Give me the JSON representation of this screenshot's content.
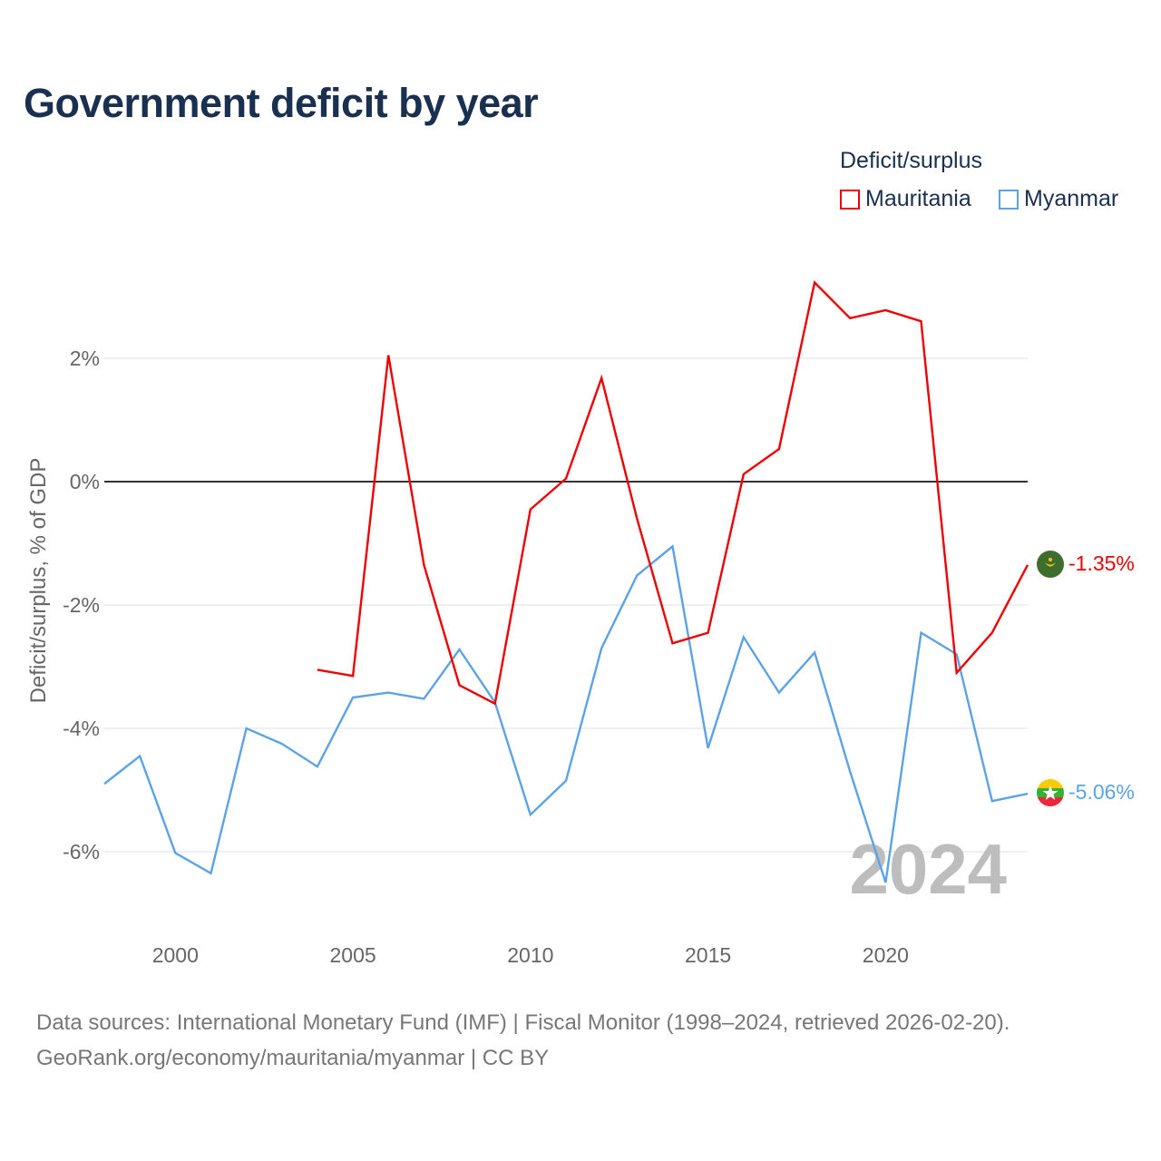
{
  "title": "Government deficit by year",
  "legend": {
    "title": "Deficit/surplus",
    "items": [
      {
        "label": "Mauritania",
        "color": "#ee0000"
      },
      {
        "label": "Myanmar",
        "color": "#5ba3e6"
      }
    ]
  },
  "watermark_year": "2024",
  "source": {
    "line1": "Data sources: International Monetary Fund (IMF) | Fiscal Monitor (1998–2024, retrieved 2026-02-20).",
    "line2": "GeoRank.org/economy/mauritania/myanmar | CC BY"
  },
  "chart_data": {
    "type": "line",
    "title": "Government deficit by year",
    "xlabel": "",
    "ylabel": "Deficit/surplus, % of GDP",
    "xlim": [
      1998,
      2024
    ],
    "ylim": [
      -7,
      3.5
    ],
    "x_ticks": [
      2000,
      2005,
      2010,
      2015,
      2020
    ],
    "y_ticks": [
      {
        "value": 2,
        "label": "2%"
      },
      {
        "value": 0,
        "label": "0%"
      },
      {
        "value": -2,
        "label": "-2%"
      },
      {
        "value": -4,
        "label": "-4%"
      },
      {
        "value": -6,
        "label": "-6%"
      }
    ],
    "series": [
      {
        "name": "Mauritania",
        "color": "#ee0000",
        "flag": "mauritania-flag-icon",
        "end_label": "-1.35%",
        "x": [
          2004,
          2005,
          2006,
          2007,
          2008,
          2009,
          2010,
          2011,
          2012,
          2013,
          2014,
          2015,
          2016,
          2017,
          2018,
          2019,
          2020,
          2021,
          2022,
          2023,
          2024
        ],
        "values": [
          -3.05,
          -3.15,
          2.05,
          -1.35,
          -3.3,
          -3.6,
          -0.45,
          0.05,
          1.68,
          -0.6,
          -2.62,
          -2.45,
          0.12,
          0.53,
          3.23,
          2.65,
          2.78,
          2.6,
          -3.1,
          -2.45,
          -1.35
        ]
      },
      {
        "name": "Myanmar",
        "color": "#5ba3e6",
        "flag": "myanmar-flag-icon",
        "end_label": "-5.06%",
        "x": [
          1998,
          1999,
          2000,
          2001,
          2002,
          2003,
          2004,
          2005,
          2006,
          2007,
          2008,
          2009,
          2010,
          2011,
          2012,
          2013,
          2014,
          2015,
          2016,
          2017,
          2018,
          2019,
          2020,
          2021,
          2022,
          2023,
          2024
        ],
        "values": [
          -4.9,
          -4.45,
          -6.02,
          -6.35,
          -4.0,
          -4.25,
          -4.62,
          -3.5,
          -3.42,
          -3.52,
          -2.72,
          -3.58,
          -5.4,
          -4.85,
          -2.7,
          -1.52,
          -1.05,
          -4.32,
          -2.52,
          -3.42,
          -2.77,
          -4.7,
          -6.5,
          -2.45,
          -2.8,
          -5.18,
          -5.06
        ]
      }
    ]
  }
}
